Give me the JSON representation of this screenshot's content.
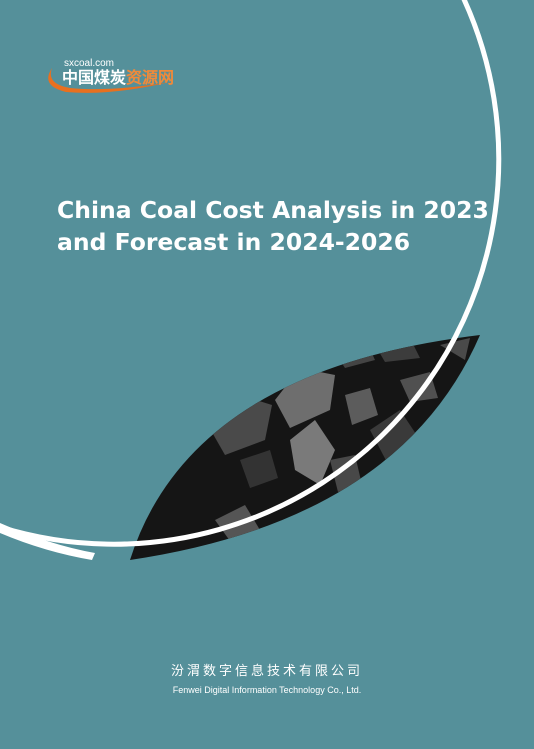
{
  "logo": {
    "url": "sxcoal.com",
    "name": [
      "中国煤炭",
      "资源网"
    ]
  },
  "title": [
    "China Coal Cost Analysis in 2023",
    "and Forecast in 2024-2026"
  ],
  "company": {
    "chinese": "汾渭数字信息技术有限公司",
    "english": "Fenwei Digital Information Technology Co., Ltd."
  }
}
